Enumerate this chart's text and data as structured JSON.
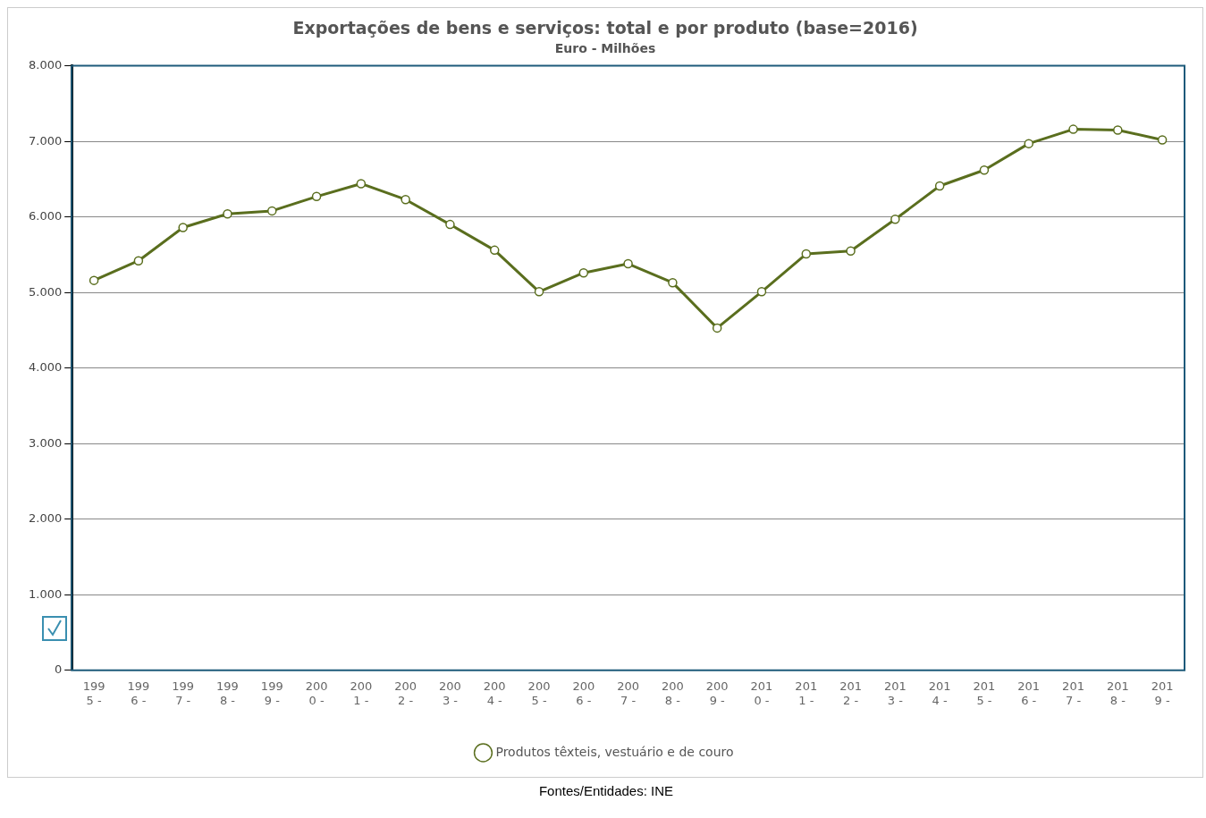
{
  "chart_data": {
    "type": "line",
    "title": "Exportações de bens e serviços: total e por produto (base=2016)",
    "subtitle": "Euro - Milhões",
    "categories": [
      "1995 -",
      "1996 -",
      "1997 -",
      "1998 -",
      "1999 -",
      "2000 -",
      "2001 -",
      "2002 -",
      "2003 -",
      "2004 -",
      "2005 -",
      "2006 -",
      "2007 -",
      "2008 -",
      "2009 -",
      "2010 -",
      "2011 -",
      "2012 -",
      "2013 -",
      "2014 -",
      "2015 -",
      "2016 -",
      "2017 -",
      "2018 -",
      "2019 -"
    ],
    "series": [
      {
        "name": "Produtos têxteis, vestuário e de couro",
        "color": "#5a6e1e",
        "values": [
          5160,
          5420,
          5860,
          6040,
          6080,
          6270,
          6440,
          6230,
          5900,
          5560,
          5010,
          5260,
          5380,
          5130,
          4530,
          5010,
          5510,
          5550,
          5970,
          6410,
          6620,
          6970,
          7160,
          7150,
          7020
        ]
      }
    ],
    "ylim": [
      0,
      8000
    ],
    "yticks": [
      {
        "value": 0,
        "label": "0"
      },
      {
        "value": 1000,
        "label": "1.000"
      },
      {
        "value": 2000,
        "label": "2.000"
      },
      {
        "value": 3000,
        "label": "3.000"
      },
      {
        "value": 4000,
        "label": "4.000"
      },
      {
        "value": 5000,
        "label": "5.000"
      },
      {
        "value": 6000,
        "label": "6.000"
      },
      {
        "value": 7000,
        "label": "7.000"
      },
      {
        "value": 8000,
        "label": "8.000"
      }
    ],
    "grid": "y",
    "legend": "bottom",
    "marker": "circle",
    "line_style": "solid",
    "annotations": [
      "Fontes/Entidades: INE"
    ]
  }
}
